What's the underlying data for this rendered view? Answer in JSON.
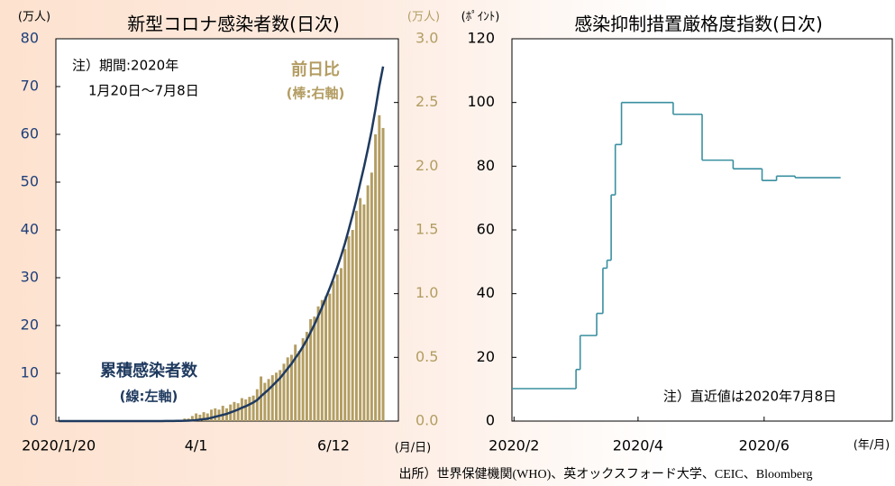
{
  "source": "出所）世界保健機関(WHO)、英オックスフォード大学、CEIC、Bloomberg",
  "chart_data": [
    {
      "type": "combo",
      "title": "新型コロナ感染者数(日次)",
      "y_unit": "(万人)",
      "y2_unit": "(万人)",
      "x_unit": "(月/日)",
      "annotations": [
        "注）期間:2020年",
        "1月20日～7月8日",
        "(棒:右軸)",
        "(線:左軸)"
      ],
      "xlim": [
        -1.5,
        178
      ],
      "xticks": [
        {
          "value": 0,
          "label": "2020/1/20"
        },
        {
          "value": 72,
          "label": "4/1"
        },
        {
          "value": 144,
          "label": "6/12"
        }
      ],
      "ylim": [
        0,
        80
      ],
      "yticks": [
        0,
        10,
        20,
        30,
        40,
        50,
        60,
        70,
        80
      ],
      "y2lim": [
        0,
        3
      ],
      "y2ticks": [
        {
          "value": 0,
          "label": "0.0"
        },
        0.5,
        {
          "value": 1,
          "label": "1.0"
        },
        1.5,
        {
          "value": 2,
          "label": "2.0"
        },
        2.5,
        {
          "value": 3,
          "label": "3.0"
        }
      ],
      "x": [
        0,
        2,
        4,
        6,
        8,
        10,
        12,
        14,
        16,
        18,
        20,
        22,
        24,
        26,
        28,
        30,
        32,
        34,
        36,
        38,
        40,
        42,
        44,
        46,
        48,
        50,
        52,
        54,
        56,
        58,
        60,
        62,
        64,
        66,
        68,
        70,
        72,
        74,
        76,
        78,
        80,
        82,
        84,
        86,
        88,
        90,
        92,
        94,
        96,
        98,
        100,
        102,
        104,
        106,
        108,
        110,
        112,
        114,
        116,
        118,
        120,
        122,
        124,
        126,
        128,
        130,
        132,
        134,
        136,
        138,
        140,
        142,
        144,
        146,
        148,
        150,
        152,
        154,
        156,
        158,
        160,
        162,
        164,
        166,
        168,
        170
      ],
      "series": [
        {
          "name": "前日比",
          "type": "bar",
          "axis": "y2",
          "color": "#b39d62",
          "values": [
            0,
            0,
            0,
            0,
            0,
            0,
            0,
            0,
            0,
            0,
            0,
            0,
            0,
            0,
            0,
            0,
            0,
            0,
            0,
            0,
            0,
            0,
            0,
            0,
            0.001,
            0.001,
            0.002,
            0.002,
            0.003,
            0.005,
            0.007,
            0.01,
            0.01,
            0.02,
            0.02,
            0.04,
            0.06,
            0.05,
            0.07,
            0.06,
            0.09,
            0.1,
            0.09,
            0.12,
            0.1,
            0.13,
            0.15,
            0.14,
            0.18,
            0.17,
            0.19,
            0.2,
            0.25,
            0.35,
            0.3,
            0.33,
            0.36,
            0.38,
            0.4,
            0.45,
            0.5,
            0.52,
            0.6,
            0.55,
            0.65,
            0.7,
            0.8,
            0.82,
            0.9,
            0.95,
            0.98,
            1.0,
            1.1,
            1.15,
            1.2,
            1.35,
            1.45,
            1.5,
            1.65,
            1.75,
            1.7,
            1.85,
            1.95,
            2.25,
            2.4,
            2.3
          ]
        },
        {
          "name": "累積感染者数",
          "type": "line",
          "axis": "y",
          "color": "#1f3a5f",
          "values": [
            0,
            0,
            0,
            0,
            0,
            0,
            0,
            0,
            0,
            0,
            0,
            0,
            0,
            0,
            0,
            0,
            0,
            0,
            0,
            0,
            0,
            0,
            0,
            0,
            0.005,
            0.007,
            0.008,
            0.01,
            0.015,
            0.02,
            0.025,
            0.04,
            0.05,
            0.07,
            0.1,
            0.14,
            0.2,
            0.3,
            0.4,
            0.5,
            0.7,
            0.9,
            1.1,
            1.3,
            1.5,
            1.8,
            2.1,
            2.4,
            2.8,
            3.1,
            3.5,
            3.9,
            4.4,
            5.2,
            5.9,
            6.6,
            7.4,
            8.2,
            9.0,
            10.0,
            11.0,
            12.0,
            13.2,
            14.3,
            15.6,
            17.0,
            18.6,
            20.2,
            22.0,
            23.8,
            25.8,
            27.8,
            29.9,
            32.2,
            34.6,
            37.2,
            40.1,
            43.1,
            46.3,
            49.8,
            53.2,
            56.9,
            60.8,
            65.3,
            70.1,
            74.2
          ]
        }
      ]
    },
    {
      "type": "line",
      "step": true,
      "title": "感染抑制措置厳格度指数(日次)",
      "y_unit": "(ﾎﾟｲﾝﾄ)",
      "x_unit": "(年/月)",
      "annotations": [
        "注）直近値は2020年7月8日"
      ],
      "xlim": [
        0,
        184
      ],
      "xticks": [
        {
          "value": 1,
          "label": "2020/2"
        },
        {
          "value": 61,
          "label": "2020/4"
        },
        {
          "value": 122,
          "label": "2020/6"
        }
      ],
      "ylim": [
        0,
        120
      ],
      "yticks": [
        0,
        20,
        40,
        60,
        80,
        100,
        120
      ],
      "x": [
        0,
        31,
        33,
        41,
        44,
        46,
        48,
        50,
        53,
        78,
        92,
        107,
        121,
        128,
        137,
        159
      ],
      "series": [
        {
          "color": "#3a8fa0",
          "values": [
            10.19,
            16.2,
            26.85,
            33.8,
            48.0,
            50.5,
            71.0,
            86.8,
            100,
            96.3,
            81.9,
            79.2,
            75.5,
            76.9,
            76.4,
            76.4
          ]
        }
      ]
    }
  ]
}
